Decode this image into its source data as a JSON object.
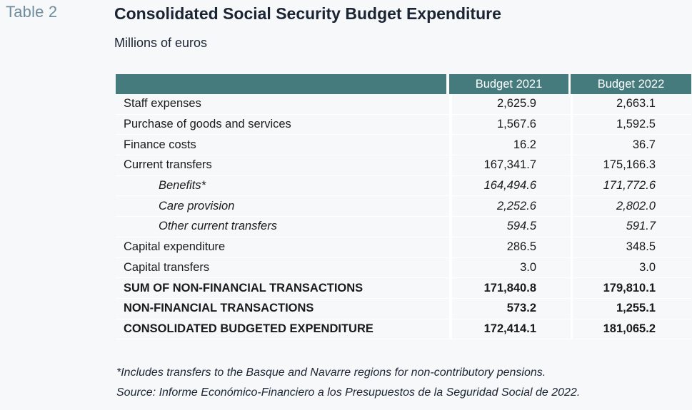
{
  "table_number": "Table 2",
  "title": "Consolidated Social Security Budget Expenditure",
  "subtitle": "Millions of euros",
  "colors": {
    "header_bg": "#467b7e",
    "header_text": "#ffffff",
    "page_bg": "#f6f8fa",
    "table_number": "#6f8c9c"
  },
  "table": {
    "headers": [
      "",
      "Budget 2021",
      "Budget 2022"
    ],
    "rows": [
      {
        "label": "Staff expenses",
        "v2021": "2,625.9",
        "v2022": "2,663.1",
        "style": "normal"
      },
      {
        "label": "Purchase of goods and services",
        "v2021": "1,567.6",
        "v2022": "1,592.5",
        "style": "normal"
      },
      {
        "label": "Finance costs",
        "v2021": "16.2",
        "v2022": "36.7",
        "style": "normal"
      },
      {
        "label": "Current transfers",
        "v2021": "167,341.7",
        "v2022": "175,166.3",
        "style": "normal"
      },
      {
        "label": "Benefits*",
        "v2021": "164,494.6",
        "v2022": "171,772.6",
        "style": "sub"
      },
      {
        "label": "Care provision",
        "v2021": "2,252.6",
        "v2022": "2,802.0",
        "style": "sub"
      },
      {
        "label": "Other current transfers",
        "v2021": "594.5",
        "v2022": "591.7",
        "style": "sub"
      },
      {
        "label": "Capital expenditure",
        "v2021": "286.5",
        "v2022": "348.5",
        "style": "normal"
      },
      {
        "label": "Capital transfers",
        "v2021": "3.0",
        "v2022": "3.0",
        "style": "normal"
      },
      {
        "label": "SUM OF NON-FINANCIAL TRANSACTIONS",
        "v2021": "171,840.8",
        "v2022": "179,810.1",
        "style": "bold"
      },
      {
        "label": "NON-FINANCIAL TRANSACTIONS",
        "v2021": "573.2",
        "v2022": "1,255.1",
        "style": "bold"
      },
      {
        "label": "CONSOLIDATED BUDGETED EXPENDITURE",
        "v2021": "172,414.1",
        "v2022": "181,065.2",
        "style": "bold"
      }
    ]
  },
  "footnote": "*Includes transfers to the Basque and Navarre regions for non-contributory pensions.",
  "source": "Source: Informe Económico-Financiero a los Presupuestos de la Seguridad Social de 2022."
}
